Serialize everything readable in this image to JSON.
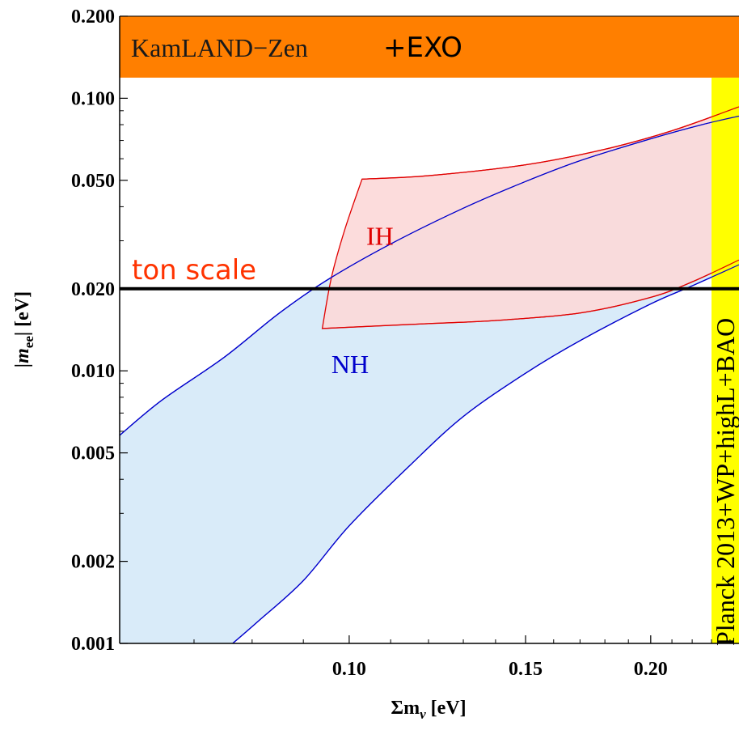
{
  "chart_data": {
    "type": "area",
    "xlabel": "Σm",
    "xlabel_sub": "ν",
    "xlabel_unit": "[eV]",
    "ylabel_pre": "|m",
    "ylabel_sub": "ee",
    "ylabel_post": "| [eV]",
    "xscale": "log",
    "yscale": "log",
    "xlim": [
      0.059,
      0.245
    ],
    "ylim": [
      0.001,
      0.2
    ],
    "x_tick_labels": [
      {
        "value": 0.1,
        "label": "0.10"
      },
      {
        "value": 0.15,
        "label": "0.15"
      },
      {
        "value": 0.2,
        "label": "0.20"
      }
    ],
    "x_minor_ticks": [
      0.07,
      0.08,
      0.09,
      0.11,
      0.12,
      0.13,
      0.14,
      0.16,
      0.17,
      0.18,
      0.19,
      0.21,
      0.22,
      0.23,
      0.24
    ],
    "y_tick_labels": [
      {
        "value": 0.001,
        "label": "0.001"
      },
      {
        "value": 0.002,
        "label": "0.002"
      },
      {
        "value": 0.005,
        "label": "0.005"
      },
      {
        "value": 0.01,
        "label": "0.010"
      },
      {
        "value": 0.02,
        "label": "0.020"
      },
      {
        "value": 0.05,
        "label": "0.050"
      },
      {
        "value": 0.1,
        "label": "0.100"
      },
      {
        "value": 0.2,
        "label": "0.200"
      }
    ],
    "y_minor_ticks": [
      0.003,
      0.004,
      0.006,
      0.007,
      0.008,
      0.009,
      0.03,
      0.04,
      0.06,
      0.07,
      0.08,
      0.09
    ],
    "series": [
      {
        "name": "NH",
        "fill": "#d9ebf9",
        "stroke": "#0000cc",
        "upper": [
          [
            0.059,
            0.0058
          ],
          [
            0.065,
            0.0078
          ],
          [
            0.075,
            0.0112
          ],
          [
            0.085,
            0.0162
          ],
          [
            0.095,
            0.0215
          ],
          [
            0.11,
            0.0292
          ],
          [
            0.13,
            0.0395
          ],
          [
            0.15,
            0.0495
          ],
          [
            0.17,
            0.059
          ],
          [
            0.2,
            0.071
          ],
          [
            0.225,
            0.08
          ],
          [
            0.245,
            0.086
          ]
        ],
        "lower": [
          [
            0.245,
            0.0245
          ],
          [
            0.22,
            0.0205
          ],
          [
            0.2,
            0.0176
          ],
          [
            0.17,
            0.0129
          ],
          [
            0.15,
            0.0098
          ],
          [
            0.13,
            0.0068
          ],
          [
            0.115,
            0.0045
          ],
          [
            0.1,
            0.0027
          ],
          [
            0.09,
            0.0017
          ],
          [
            0.081,
            0.0012
          ],
          [
            0.0765,
            0.001
          ]
        ],
        "floor": [
          0.0765,
          0.059
        ]
      },
      {
        "name": "IH",
        "fill": "#fcd9d9",
        "stroke": "#e00000",
        "upper": [
          [
            0.103,
            0.0505
          ],
          [
            0.12,
            0.052
          ],
          [
            0.15,
            0.057
          ],
          [
            0.18,
            0.065
          ],
          [
            0.21,
            0.076
          ],
          [
            0.245,
            0.093
          ]
        ],
        "lower": [
          [
            0.245,
            0.0255
          ],
          [
            0.22,
            0.0212
          ],
          [
            0.2,
            0.0186
          ],
          [
            0.17,
            0.0163
          ],
          [
            0.14,
            0.0153
          ],
          [
            0.12,
            0.0149
          ],
          [
            0.094,
            0.0143
          ]
        ],
        "left": [
          [
            0.094,
            0.0143
          ],
          [
            0.096,
            0.022
          ],
          [
            0.099,
            0.033
          ],
          [
            0.103,
            0.0505
          ]
        ]
      }
    ],
    "bands": [
      {
        "label": "KamLAND−Zen",
        "label2": "+EXO",
        "color": "#ff7f00",
        "y_from": 0.119,
        "y_to": 0.2
      },
      {
        "label": "Planck 2013+WP+highL+BAO",
        "color": "#ffff00",
        "x_from": 0.23,
        "x_to": 0.245
      }
    ],
    "hline": {
      "label": "ton scale",
      "y": 0.02,
      "color": "#000000",
      "label_color": "#ff3300"
    },
    "annotations": [
      {
        "text": "IH",
        "color": "#e00000",
        "x": 0.104,
        "y": 0.029
      },
      {
        "text": "NH",
        "color": "#0000cc",
        "x": 0.096,
        "y": 0.0098
      }
    ],
    "grid": false
  }
}
